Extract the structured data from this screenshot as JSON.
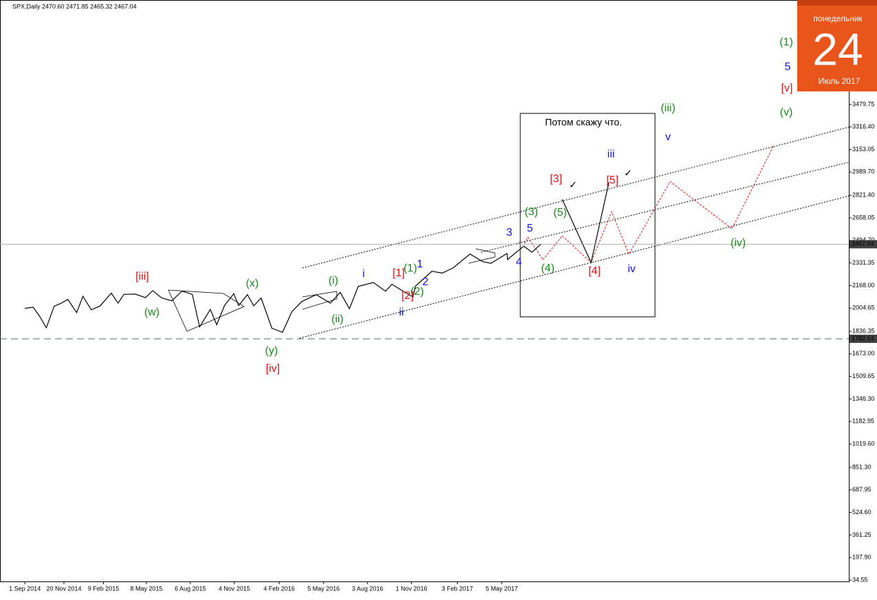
{
  "chart_data": {
    "type": "line",
    "title": "SPX,Daily  2470.60 2471.85 2465.32 2467.04",
    "calendar": {
      "weekday": "понедельник",
      "day": "24",
      "month": "Июль 2017"
    },
    "note": "Потом скажу что.",
    "color": "#000000",
    "x": [
      "1 Sep 2014",
      "18 Sep 2014",
      "1 Oct 2014",
      "15 Oct 2014",
      "31 Oct 2014",
      "14 Nov 2014",
      "28 Nov 2014",
      "16 Dec 2014",
      "29 Dec 2014",
      "15 Jan 2015",
      "2 Feb 2015",
      "25 Feb 2015",
      "11 Mar 2015",
      "23 Mar 2015",
      "15 Apr 2015",
      "6 May 2015",
      "21 May 2015",
      "8 Jun 2015",
      "29 Jun 2015",
      "20 Jul 2015",
      "10 Aug 2015",
      "25 Aug 2015",
      "16 Sep 2015",
      "29 Sep 2015",
      "15 Oct 2015",
      "3 Nov 2015",
      "13 Nov 2015",
      "1 Dec 2015",
      "14 Dec 2015",
      "29 Dec 2015",
      "20 Jan 2016",
      "11 Feb 2016",
      "1 Mar 2016",
      "21 Mar 2016",
      "20 Apr 2016",
      "19 May 2016",
      "8 Jun 2016",
      "27 Jun 2016",
      "15 Jul 2016",
      "15 Aug 2016",
      "9 Sep 2016",
      "22 Sep 2016",
      "13 Oct 2016",
      "4 Nov 2016",
      "9 Nov 2016",
      "13 Dec 2016",
      "3 Jan 2017",
      "26 Jan 2017",
      "1 Mar 2017",
      "27 Mar 2017",
      "13 Apr 2017",
      "16 May 2017",
      "17 May 2017",
      "19 Jun 2017",
      "6 Jul 2017",
      "24 Jul 2017"
    ],
    "values": [
      2003,
      2011,
      1946,
      1862,
      2018,
      2039,
      2067,
      1972,
      2090,
      1992,
      2020,
      2113,
      2040,
      2104,
      2106,
      2080,
      2131,
      2079,
      2057,
      2128,
      2104,
      1868,
      1995,
      1884,
      2023,
      2109,
      2023,
      2102,
      2021,
      2078,
      1859,
      1829,
      1978,
      2051,
      2102,
      2040,
      2119,
      2000,
      2161,
      2190,
      2127,
      2177,
      2132,
      2085,
      2163,
      2271,
      2258,
      2297,
      2396,
      2341,
      2329,
      2400,
      2357,
      2453,
      2409,
      2467.04
    ],
    "xticks": [
      "1 Sep 2014",
      "20 Nov 2014",
      "9 Feb 2015",
      "8 May 2015",
      "6 Aug 2015",
      "4 Nov 2015",
      "4 Feb 2016",
      "5 May 2016",
      "3 Aug 2016",
      "1 Nov 2016",
      "3 Feb 2017",
      "5 May 2017"
    ],
    "ylim": [
      -55,
      4236
    ],
    "yticks": [
      34.55,
      {
        "value": 197.9,
        "label": "197.90"
      },
      {
        "value": 361.25,
        "label": "361.25"
      },
      {
        "value": 524.6,
        "label": "524.60"
      },
      687.95,
      {
        "value": 851.3,
        "label": "851.30"
      },
      {
        "value": 1019.6,
        "label": "1019.60"
      },
      1182.95,
      {
        "value": 1346.3,
        "label": "1346.30"
      },
      1509.65,
      {
        "value": 1673,
        "label": "1673.00"
      },
      1836.35,
      2004.65,
      {
        "value": 2168,
        "label": "2168.00"
      },
      2331.35,
      {
        "value": 2494.7,
        "label": "2494.70"
      },
      2658.05,
      {
        "value": 2821.4,
        "label": "2821.40"
      },
      {
        "value": 2989.7,
        "label": "2989.70"
      },
      3153.05,
      {
        "value": 3316.4,
        "label": "3316.40"
      },
      3479.75
    ],
    "hlines": [
      {
        "value": 2467.04,
        "color": "#b0b0b0",
        "style": "solid"
      },
      {
        "value": 1782.14,
        "color": "#4a6a6a",
        "style": "dashed"
      }
    ],
    "annotations": [
      {
        "text": "[iii]",
        "color": "#e01010"
      },
      {
        "text": "(w)",
        "color": "#1a8c1a"
      },
      {
        "text": "(x)",
        "color": "#1a8c1a"
      },
      {
        "text": "(y)",
        "color": "#1a8c1a"
      },
      {
        "text": "[iv]",
        "color": "#e01010"
      },
      {
        "text": "(i)",
        "color": "#1a8c1a"
      },
      {
        "text": "(ii)",
        "color": "#1a8c1a"
      },
      {
        "text": "i",
        "color": "#1515d6"
      },
      {
        "text": "[1]",
        "color": "#e01010"
      },
      {
        "text": "(1)",
        "color": "#1a8c1a"
      },
      {
        "text": "1",
        "color": "#1515d6"
      },
      {
        "text": "2",
        "color": "#1515d6"
      },
      {
        "text": "(2)",
        "color": "#1a8c1a"
      },
      {
        "text": "[2]",
        "color": "#e01010"
      },
      {
        "text": "ii",
        "color": "#1515d6"
      },
      {
        "text": "3",
        "color": "#1515d6"
      },
      {
        "text": "5",
        "color": "#1515d6"
      },
      {
        "text": "4",
        "color": "#1515d6"
      },
      {
        "text": "(3)",
        "color": "#1a8c1a"
      },
      {
        "text": "(4)",
        "color": "#1a8c1a"
      },
      {
        "text": "(5)",
        "color": "#1a8c1a"
      },
      {
        "text": "[3]",
        "color": "#e01010"
      },
      {
        "text": "[4]",
        "color": "#e01010"
      },
      {
        "text": "[5]",
        "color": "#e01010"
      },
      {
        "text": "iii",
        "color": "#1515d6"
      },
      {
        "text": "iv",
        "color": "#1515d6"
      },
      {
        "text": "v",
        "color": "#1515d6"
      },
      {
        "text": "(iii)",
        "color": "#1a8c1a"
      },
      {
        "text": "(iv)",
        "color": "#1a8c1a"
      },
      {
        "text": "(v)",
        "color": "#1a8c1a"
      },
      {
        "text": "(1)",
        "color": "#1a8c1a"
      },
      {
        "text": "5",
        "color": "#1515d6"
      },
      {
        "text": "[v]",
        "color": "#e01010"
      }
    ]
  }
}
